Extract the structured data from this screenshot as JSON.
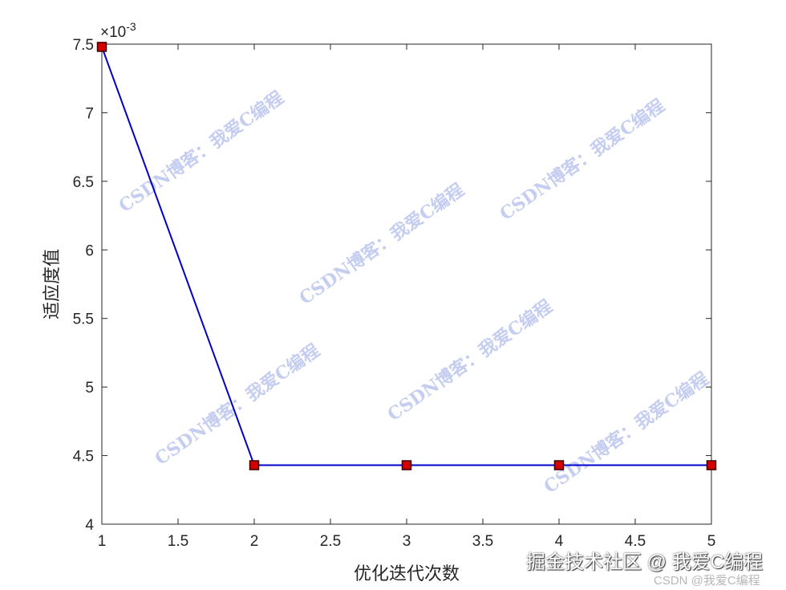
{
  "chart_data": {
    "type": "line",
    "title": "",
    "xlabel": "优化迭代次数",
    "ylabel": "适应度值",
    "x": [
      1,
      2,
      3,
      4,
      5
    ],
    "series": [
      {
        "values": [
          0.00748,
          0.00443,
          0.00443,
          0.00443,
          0.00443
        ],
        "color": "#0000c8",
        "marker": "square",
        "marker_color": "#d40000"
      }
    ],
    "xlim": [
      1,
      5
    ],
    "ylim": [
      0.004,
      0.0075
    ],
    "x_ticks": [
      "1",
      "1.5",
      "2",
      "2.5",
      "3",
      "3.5",
      "4",
      "4.5",
      "5"
    ],
    "y_ticks": [
      "4",
      "4.5",
      "5",
      "5.5",
      "6",
      "6.5",
      "7",
      "7.5"
    ],
    "y_exponent_label": "×10",
    "y_exponent_power": "-3",
    "grid": false,
    "box": true
  },
  "watermark": "CSDN博客：我爱C编程",
  "credits": {
    "primary": "掘金技术社区 @ 我爱C编程",
    "secondary": "CSDN @我爱C编程"
  }
}
